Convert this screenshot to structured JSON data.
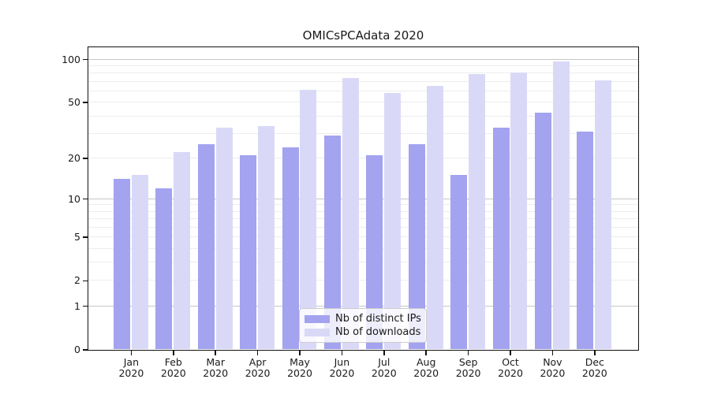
{
  "chart_data": {
    "type": "bar",
    "title": "OMICsPCAdata 2020",
    "legend": [
      "Nb of distinct IPs",
      "Nb of downloads"
    ],
    "legend_position": "lower center",
    "categories": [
      "Jan 2020",
      "Feb 2020",
      "Mar 2020",
      "Apr 2020",
      "May 2020",
      "Jun 2020",
      "Jul 2020",
      "Aug 2020",
      "Sep 2020",
      "Oct 2020",
      "Nov 2020",
      "Dec 2020"
    ],
    "x_labels": [
      [
        "Jan",
        "2020"
      ],
      [
        "Feb",
        "2020"
      ],
      [
        "Mar",
        "2020"
      ],
      [
        "Apr",
        "2020"
      ],
      [
        "May",
        "2020"
      ],
      [
        "Jun",
        "2020"
      ],
      [
        "Jul",
        "2020"
      ],
      [
        "Aug",
        "2020"
      ],
      [
        "Sep",
        "2020"
      ],
      [
        "Oct",
        "2020"
      ],
      [
        "Nov",
        "2020"
      ],
      [
        "Dec",
        "2020"
      ]
    ],
    "series": [
      {
        "name": "Nb of distinct IPs",
        "values": [
          14,
          12,
          25,
          21,
          24,
          29,
          21,
          25,
          15,
          33,
          42,
          31
        ]
      },
      {
        "name": "Nb of downloads",
        "values": [
          15,
          22,
          33,
          34,
          61,
          74,
          58,
          65,
          79,
          81,
          97,
          71
        ]
      }
    ],
    "y_ticks": [
      0,
      1,
      2,
      5,
      10,
      20,
      50,
      100
    ],
    "y_scale": "log-like (log10 of 1+x), 0 at baseline",
    "ylim": [
      0,
      122
    ],
    "grid": {
      "minor": [
        2,
        3,
        4,
        5,
        6,
        7,
        8,
        9,
        20,
        30,
        40,
        50,
        60,
        70,
        80,
        90
      ],
      "major": [
        1,
        10,
        100
      ]
    },
    "colors": {
      "distinct_ips": "#a3a3f0",
      "downloads": "#d9d9f7",
      "grid_major": "#c6c6c6",
      "grid_minor": "#ededed",
      "axis": "#111111"
    }
  }
}
